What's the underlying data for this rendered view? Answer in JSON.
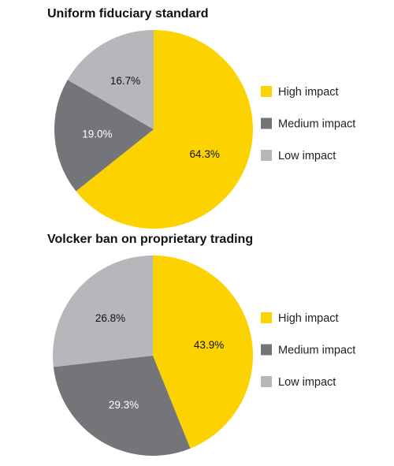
{
  "chart_data": [
    {
      "type": "pie",
      "title": "Uniform fiduciary standard",
      "series": [
        {
          "name": "High impact",
          "value": 64.3,
          "label": "64.3%",
          "color": "#FCD200"
        },
        {
          "name": "Medium impact",
          "value": 19.0,
          "label": "19.0%",
          "color": "#747578"
        },
        {
          "name": "Low impact",
          "value": 16.7,
          "label": "16.7%",
          "color": "#B6B7BA"
        }
      ],
      "legend_position": "right"
    },
    {
      "type": "pie",
      "title": "Volcker ban on proprietary trading",
      "series": [
        {
          "name": "High impact",
          "value": 43.9,
          "label": "43.9%",
          "color": "#FCD200"
        },
        {
          "name": "Medium impact",
          "value": 29.3,
          "label": "29.3%",
          "color": "#747578"
        },
        {
          "name": "Low impact",
          "value": 26.8,
          "label": "26.8%",
          "color": "#B6B7BA"
        }
      ],
      "legend_position": "right"
    }
  ],
  "label_colors": {
    "on_yellow": "#111111",
    "on_dark": "#ffffff",
    "on_light": "#111111"
  }
}
